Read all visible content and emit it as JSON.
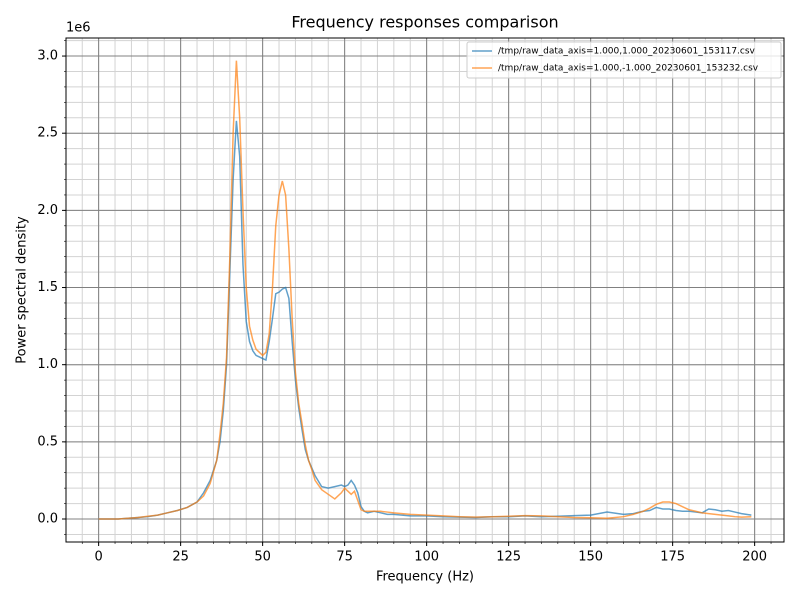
{
  "chart_data": {
    "type": "line",
    "title": "Frequency responses comparison",
    "x_label": "Frequency (Hz)",
    "y_label": "Power spectral density",
    "y_offset_label": "1e6",
    "x": [
      0,
      3,
      6,
      9,
      12,
      15,
      18,
      21,
      24,
      27,
      30,
      32,
      34,
      36,
      37,
      38,
      39,
      40,
      41,
      42,
      43,
      44,
      45,
      46,
      47,
      48,
      49,
      50,
      51,
      52,
      53,
      54,
      55,
      56,
      57,
      58,
      59,
      60,
      61,
      62,
      63,
      64,
      65,
      66,
      68,
      70,
      72,
      74,
      75,
      76,
      77,
      78,
      79,
      80,
      81,
      82,
      84,
      86,
      88,
      90,
      95,
      100,
      105,
      110,
      115,
      120,
      125,
      130,
      135,
      140,
      145,
      150,
      155,
      160,
      163,
      166,
      168,
      170,
      172,
      174,
      176,
      178,
      180,
      182,
      184,
      186,
      188,
      190,
      192,
      194,
      196,
      199
    ],
    "series": [
      {
        "name": "/tmp/raw_data_axis=1.000,1.000_20230601_153117.csv",
        "color": "#1f77b4",
        "values": [
          0,
          0,
          0,
          0.005,
          0.01,
          0.015,
          0.025,
          0.04,
          0.055,
          0.075,
          0.11,
          0.17,
          0.25,
          0.38,
          0.5,
          0.7,
          1.0,
          1.6,
          2.2,
          2.58,
          2.35,
          1.65,
          1.28,
          1.15,
          1.09,
          1.06,
          1.05,
          1.04,
          1.03,
          1.15,
          1.3,
          1.46,
          1.47,
          1.49,
          1.5,
          1.43,
          1.15,
          0.9,
          0.72,
          0.58,
          0.45,
          0.38,
          0.33,
          0.28,
          0.21,
          0.2,
          0.21,
          0.22,
          0.21,
          0.22,
          0.25,
          0.22,
          0.17,
          0.08,
          0.05,
          0.04,
          0.05,
          0.04,
          0.03,
          0.03,
          0.02,
          0.02,
          0.015,
          0.012,
          0.01,
          0.015,
          0.015,
          0.02,
          0.015,
          0.018,
          0.022,
          0.025,
          0.045,
          0.03,
          0.035,
          0.05,
          0.055,
          0.075,
          0.065,
          0.065,
          0.055,
          0.05,
          0.05,
          0.045,
          0.04,
          0.065,
          0.06,
          0.05,
          0.055,
          0.045,
          0.035,
          0.025
        ]
      },
      {
        "name": "/tmp/raw_data_axis=1.000,-1.000_20230601_153232.csv",
        "color": "#ff7f0e",
        "values": [
          0,
          0,
          0,
          0.005,
          0.01,
          0.018,
          0.025,
          0.04,
          0.055,
          0.075,
          0.11,
          0.15,
          0.23,
          0.38,
          0.55,
          0.75,
          1.05,
          1.7,
          2.5,
          2.97,
          2.6,
          2.0,
          1.5,
          1.25,
          1.16,
          1.1,
          1.08,
          1.06,
          1.08,
          1.2,
          1.5,
          1.9,
          2.1,
          2.19,
          2.1,
          1.75,
          1.3,
          0.95,
          0.75,
          0.62,
          0.48,
          0.38,
          0.32,
          0.25,
          0.19,
          0.16,
          0.13,
          0.17,
          0.2,
          0.18,
          0.16,
          0.18,
          0.12,
          0.06,
          0.05,
          0.05,
          0.05,
          0.05,
          0.045,
          0.04,
          0.03,
          0.025,
          0.02,
          0.015,
          0.012,
          0.015,
          0.018,
          0.022,
          0.02,
          0.015,
          0.01,
          0.008,
          0.005,
          0.015,
          0.03,
          0.05,
          0.07,
          0.095,
          0.11,
          0.11,
          0.1,
          0.08,
          0.06,
          0.05,
          0.04,
          0.035,
          0.03,
          0.025,
          0.02,
          0.015,
          0.012,
          0.015
        ]
      }
    ],
    "line_alpha": 0.7,
    "xlim": [
      -9.95,
      208.95
    ],
    "xticks": [
      0,
      25,
      50,
      75,
      100,
      125,
      150,
      175,
      200
    ],
    "ylim": [
      -0.149,
      3.117
    ],
    "yticks": [
      {
        "value": 0,
        "label": "0.0"
      },
      0.5,
      {
        "value": 1,
        "label": "1.0"
      },
      1.5,
      {
        "value": 2,
        "label": "2.0"
      },
      2.5,
      {
        "value": 3,
        "label": "3.0"
      }
    ],
    "grid": true,
    "minor_grid": true,
    "legend": "upper right"
  }
}
